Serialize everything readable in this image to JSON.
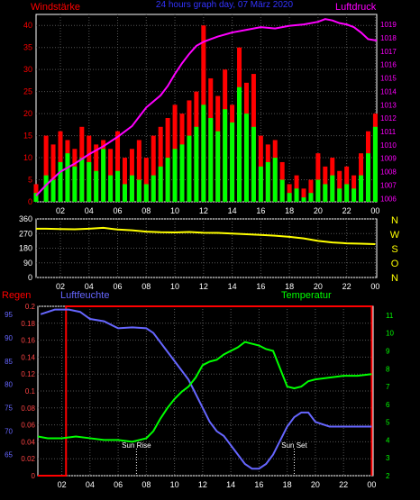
{
  "chart_data": [
    {
      "type": "line",
      "title": "24 hours graph day, 07 März 2020",
      "left_axis_label": "Windstärke",
      "right_axis_label": "Luftdruck",
      "x_ticks": [
        "02",
        "04",
        "06",
        "08",
        "10",
        "12",
        "14",
        "16",
        "18",
        "20",
        "22",
        "00"
      ],
      "y_left_ticks": [
        0,
        5,
        10,
        15,
        20,
        25,
        30,
        35,
        40
      ],
      "y_right_ticks": [
        1006,
        1007,
        1008,
        1009,
        1010,
        1011,
        1012,
        1013,
        1014,
        1015,
        1016,
        1017,
        1018,
        1019
      ],
      "ylim_left": [
        0,
        42.5
      ],
      "ylim_right": [
        1005.75,
        1019.75
      ],
      "x_range_hours": [
        0.3,
        24.1
      ],
      "colors": {
        "gust": "#ff0000",
        "wind": "#00ff00",
        "pressure": "#ff00ff",
        "title": "#3333ff",
        "axis_left": "#ff0000",
        "axis_right": "#ff00ff"
      },
      "series": [
        {
          "name": "Luftdruck",
          "x": [
            0.3,
            1,
            2,
            3,
            4,
            5,
            6,
            7,
            7.5,
            8,
            9,
            9.5,
            10,
            10.5,
            11,
            11.5,
            12,
            12.5,
            13,
            14,
            15,
            16,
            17,
            18,
            19,
            20,
            20.5,
            21,
            21.5,
            22,
            22.5,
            23,
            23.5,
            24.1
          ],
          "values": [
            1006.2,
            1007.0,
            1008.0,
            1008.6,
            1009.3,
            1009.9,
            1010.6,
            1011.4,
            1012.1,
            1012.8,
            1013.7,
            1014.4,
            1015.3,
            1016.1,
            1016.8,
            1017.4,
            1017.7,
            1017.9,
            1018.1,
            1018.4,
            1018.6,
            1018.8,
            1018.7,
            1018.9,
            1019.0,
            1019.2,
            1019.4,
            1019.3,
            1019.1,
            1019.0,
            1018.8,
            1018.4,
            1017.9,
            1017.8
          ]
        },
        {
          "name": "gust",
          "x": [
            0.3,
            1,
            1.5,
            2,
            2.5,
            3,
            3.5,
            4,
            4.5,
            5,
            5.5,
            6,
            6.5,
            7,
            7.5,
            8,
            8.5,
            9,
            9.5,
            10,
            10.5,
            11,
            11.5,
            12,
            12.5,
            13,
            13.5,
            14,
            14.5,
            15,
            15.5,
            16,
            16.5,
            17,
            17.5,
            18,
            18.5,
            19,
            19.5,
            20,
            20.5,
            21,
            21.5,
            22,
            22.5,
            23,
            23.5,
            24
          ],
          "values": [
            4,
            15,
            13,
            16,
            14,
            12,
            17,
            15,
            13,
            14,
            12,
            16,
            10,
            12,
            14,
            10,
            15,
            17,
            19,
            22,
            20,
            23,
            25,
            40,
            28,
            24,
            30,
            22,
            35,
            27,
            29,
            15,
            13,
            14,
            9,
            4,
            6,
            3,
            5,
            11,
            8,
            10,
            7,
            8,
            6,
            11,
            16,
            20
          ]
        },
        {
          "name": "wind",
          "x": [
            0.3,
            1,
            1.5,
            2,
            2.5,
            3,
            3.5,
            4,
            4.5,
            5,
            5.5,
            6,
            6.5,
            7,
            7.5,
            8,
            8.5,
            9,
            9.5,
            10,
            10.5,
            11,
            11.5,
            12,
            12.5,
            13,
            13.5,
            14,
            14.5,
            15,
            15.5,
            16,
            16.5,
            17,
            17.5,
            18,
            18.5,
            19,
            19.5,
            20,
            20.5,
            21,
            21.5,
            22,
            22.5,
            23,
            23.5,
            24
          ],
          "values": [
            2,
            6,
            5,
            9,
            11,
            8,
            10,
            9,
            7,
            12,
            6,
            7,
            4,
            6,
            5,
            4,
            6,
            8,
            10,
            12,
            13,
            15,
            17,
            22,
            19,
            16,
            21,
            18,
            26,
            20,
            17,
            8,
            9,
            10,
            5,
            2,
            3,
            1,
            2,
            5,
            4,
            6,
            3,
            4,
            3,
            6,
            11,
            17
          ]
        }
      ]
    },
    {
      "type": "line",
      "title": "",
      "x_ticks": [
        "02",
        "04",
        "06",
        "08",
        "10",
        "12",
        "14",
        "16",
        "18",
        "20",
        "22",
        "00"
      ],
      "y_ticks": [
        0,
        90,
        180,
        270,
        360
      ],
      "ylim": [
        0,
        360
      ],
      "x_range_hours": [
        0.3,
        24.1
      ],
      "compass_labels": [
        "N",
        "W",
        "S",
        "O",
        "N"
      ],
      "colors": {
        "direction": "#ffff00",
        "compass": "#ffff00"
      },
      "series": [
        {
          "name": "Windrichtung",
          "x": [
            0.3,
            1,
            2,
            3,
            4,
            5,
            6,
            7,
            8,
            9,
            10,
            11,
            12,
            13,
            14,
            15,
            16,
            17,
            18,
            19,
            20,
            21,
            22,
            23,
            24
          ],
          "values": [
            300,
            300,
            298,
            296,
            300,
            305,
            295,
            290,
            282,
            278,
            277,
            280,
            275,
            274,
            270,
            266,
            262,
            257,
            250,
            240,
            225,
            215,
            210,
            208,
            205
          ]
        }
      ]
    },
    {
      "type": "line",
      "title": "",
      "legend": [
        "Regen",
        "Luftfeuchte",
        "Temperatur"
      ],
      "annotations": [
        "Sun Rise",
        "Sun Set"
      ],
      "x_ticks": [
        "02",
        "04",
        "06",
        "08",
        "10",
        "12",
        "14",
        "16",
        "18",
        "20",
        "22",
        "00"
      ],
      "y_rain_ticks": [
        "0",
        "0.02",
        "0.04",
        "0.06",
        "0.08",
        "0.1",
        "0.12",
        "0.14",
        "0.16",
        "0.18",
        "0.2"
      ],
      "y_humidity_ticks": [
        65,
        70,
        75,
        80,
        85,
        90,
        95
      ],
      "y_temp_ticks": [
        2,
        3,
        4,
        5,
        6,
        7,
        8,
        9,
        10,
        11
      ],
      "ylim_rain": [
        0,
        0.2
      ],
      "ylim_humidity": [
        60.5,
        96.7
      ],
      "ylim_temp": [
        2,
        11.5
      ],
      "x_range_hours": [
        0.3,
        24.1
      ],
      "colors": {
        "rain": "#ff0000",
        "humidity": "#6666ff",
        "temperature": "#00ff00",
        "annotation": "#ffffff"
      },
      "series": [
        {
          "name": "Regen",
          "x": [
            0.3,
            2.3,
            2.3,
            24.0,
            24.0
          ],
          "values": [
            0,
            0,
            0.2,
            0.2,
            0
          ]
        },
        {
          "name": "Luftfeuchte",
          "x": [
            0.5,
            1.5,
            2.5,
            3.3,
            4.0,
            5.0,
            6.0,
            7.0,
            8.0,
            8.5,
            9.0,
            9.5,
            10.0,
            10.5,
            11.0,
            11.5,
            12.0,
            12.5,
            13.0,
            13.5,
            14.0,
            14.5,
            15.0,
            15.5,
            16.0,
            16.5,
            17.0,
            17.5,
            18.0,
            18.5,
            19.0,
            19.5,
            20.0,
            21.0,
            22.0,
            23.0,
            24.0
          ],
          "values": [
            95,
            96,
            96,
            95.5,
            94,
            93.5,
            92,
            92.2,
            92,
            91,
            89,
            87,
            85,
            83,
            81,
            78,
            75,
            72,
            70,
            69,
            67,
            65,
            63,
            62,
            62,
            63,
            65,
            68,
            71,
            73,
            74,
            74,
            72,
            71,
            71,
            71,
            71
          ]
        },
        {
          "name": "Temperatur",
          "x": [
            0.3,
            1.0,
            2.0,
            3.0,
            4.0,
            5.0,
            6.0,
            7.0,
            8.0,
            8.5,
            9.0,
            9.5,
            10.0,
            10.5,
            11.0,
            11.5,
            12.0,
            12.5,
            13.0,
            13.5,
            14.0,
            14.5,
            15.0,
            15.5,
            16.0,
            16.5,
            17.0,
            17.5,
            18.0,
            18.5,
            19.0,
            19.5,
            20.0,
            21.0,
            22.0,
            23.0,
            24.0
          ],
          "values": [
            4.2,
            4.1,
            4.1,
            4.2,
            4.1,
            4.0,
            4.0,
            3.9,
            4.1,
            4.5,
            5.2,
            5.8,
            6.3,
            6.7,
            7.0,
            7.5,
            8.2,
            8.4,
            8.5,
            8.8,
            9.0,
            9.2,
            9.5,
            9.4,
            9.3,
            9.1,
            9.0,
            8.0,
            7.0,
            6.9,
            7.0,
            7.3,
            7.4,
            7.5,
            7.6,
            7.6,
            7.7
          ]
        }
      ]
    }
  ]
}
